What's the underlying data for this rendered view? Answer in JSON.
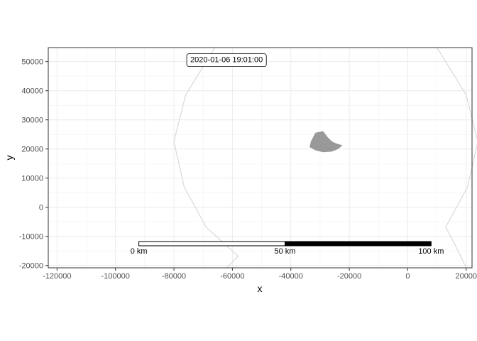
{
  "chart_data": {
    "type": "map",
    "xlabel": "x",
    "ylabel": "y",
    "xlim": [
      -123000,
      22000
    ],
    "ylim": [
      -20800,
      54800
    ],
    "x_ticks": [
      -120000,
      -100000,
      -80000,
      -60000,
      -40000,
      -20000,
      0,
      20000
    ],
    "x_tick_labels": [
      "-120000",
      "-100000",
      "-80000",
      "-60000",
      "-40000",
      "-20000",
      "0",
      "20000"
    ],
    "y_ticks": [
      -20000,
      -10000,
      0,
      10000,
      20000,
      30000,
      40000,
      50000
    ],
    "y_tick_labels": [
      "-20000",
      "-10000",
      "0",
      "10000",
      "20000",
      "30000",
      "40000",
      "50000"
    ],
    "grid": true,
    "annotation": {
      "text": "2020-01-06 19:01:00",
      "x": -62000,
      "y": 50500
    },
    "scale_bar": {
      "x_start": -92000,
      "x_end": 8000,
      "y": -12500,
      "segments": [
        {
          "from": -92000,
          "to": -42000,
          "fill": "#ffffff"
        },
        {
          "from": -42000,
          "to": 8000,
          "fill": "#000000"
        }
      ],
      "labels": [
        {
          "text": "0 km",
          "x": -92000
        },
        {
          "text": "50 km",
          "x": -42000
        },
        {
          "text": "100 km",
          "x": 8000
        }
      ]
    },
    "ring": {
      "color": "#d9d9d9",
      "points": [
        [
          -66000,
          54800
        ],
        [
          -76000,
          38500
        ],
        [
          -80000,
          22500
        ],
        [
          -76500,
          7000
        ],
        [
          -69000,
          -6800
        ],
        [
          -58000,
          -16800
        ],
        [
          -62000,
          -20800
        ]
      ],
      "points_right": [
        [
          10000,
          54800
        ],
        [
          20000,
          38500
        ],
        [
          24000,
          22500
        ],
        [
          20500,
          7000
        ],
        [
          13000,
          -6800
        ],
        [
          16000,
          -12500
        ],
        [
          20000,
          -20800
        ]
      ]
    },
    "shape": {
      "color": "#999999",
      "points": [
        [
          -31500,
          25500
        ],
        [
          -29000,
          26000
        ],
        [
          -27500,
          24000
        ],
        [
          -26000,
          22500
        ],
        [
          -24500,
          21800
        ],
        [
          -22500,
          21200
        ],
        [
          -24000,
          20000
        ],
        [
          -26000,
          19200
        ],
        [
          -29000,
          19000
        ],
        [
          -31500,
          19600
        ],
        [
          -33500,
          20700
        ],
        [
          -33000,
          22700
        ]
      ]
    }
  }
}
